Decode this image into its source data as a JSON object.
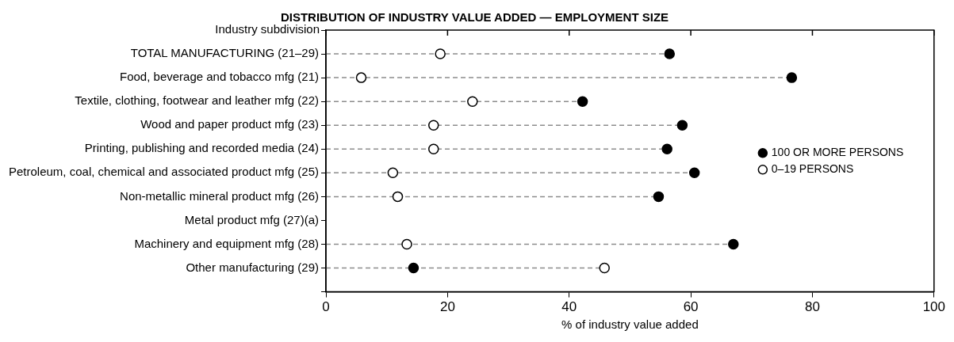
{
  "chart_data": {
    "type": "lollipop",
    "title": "DISTRIBUTION OF INDUSTRY VALUE ADDED — EMPLOYMENT SIZE",
    "ylabel": "Industry subdivision",
    "xlabel": "% of industry value added",
    "orientation": "horizontal",
    "categories": [
      "TOTAL MANUFACTURING (21–29)",
      "Food, beverage and tobacco mfg (21)",
      "Textile, clothing, footwear and leather mfg (22)",
      "Wood and paper product mfg (23)",
      "Printing, publishing and recorded media (24)",
      "Petroleum, coal, chemical and associated product mfg (25)",
      "Non-metallic mineral product mfg (26)",
      "Metal product mfg (27)(a)",
      "Machinery and equipment mfg (28)",
      "Other manufacturing (29)"
    ],
    "series": [
      {
        "name": "100 OR MORE PERSONS",
        "color": "#000000",
        "values": [
          56.5,
          76.6,
          42.2,
          58.6,
          56.1,
          60.6,
          54.7,
          null,
          67.0,
          14.4
        ]
      },
      {
        "name": "0–19 PERSONS",
        "color": "#ffffff",
        "values": [
          18.8,
          5.8,
          24.1,
          17.7,
          17.7,
          11.0,
          11.8,
          null,
          13.3,
          45.8
        ]
      }
    ],
    "xlim": [
      0,
      100
    ],
    "xticks": [
      0,
      20,
      40,
      60,
      80,
      100
    ],
    "grid": false,
    "legend": "right",
    "marker": "circle",
    "line_style": "dashed"
  }
}
